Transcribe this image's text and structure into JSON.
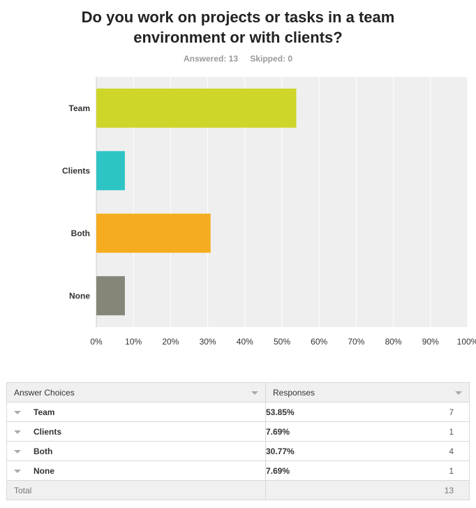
{
  "title_lines": [
    "Do you work on projects or tasks in a team",
    "environment or with clients?"
  ],
  "answered": "Answered: 13",
  "skipped": "Skipped: 0",
  "chart_data": {
    "type": "bar",
    "orientation": "horizontal",
    "title": "Do you work on projects or tasks in a team environment or with clients?",
    "categories": [
      "Team",
      "Clients",
      "Both",
      "None"
    ],
    "values": [
      53.85,
      7.69,
      30.77,
      7.69
    ],
    "colors": [
      "#cdd629",
      "#2fc4c4",
      "#f5ad1f",
      "#858678"
    ],
    "xlim": [
      0,
      100
    ],
    "xticks": [
      "0%",
      "10%",
      "20%",
      "30%",
      "40%",
      "50%",
      "60%",
      "70%",
      "80%",
      "90%",
      "100%"
    ],
    "grid": true,
    "background": "#efefef"
  },
  "table": {
    "headers": [
      "Answer Choices",
      "Responses"
    ],
    "rows": [
      {
        "choice": "Team",
        "percent": "53.85%",
        "count": "7"
      },
      {
        "choice": "Clients",
        "percent": "7.69%",
        "count": "1"
      },
      {
        "choice": "Both",
        "percent": "30.77%",
        "count": "4"
      },
      {
        "choice": "None",
        "percent": "7.69%",
        "count": "1"
      }
    ],
    "total_label": "Total",
    "total_value": "13"
  }
}
